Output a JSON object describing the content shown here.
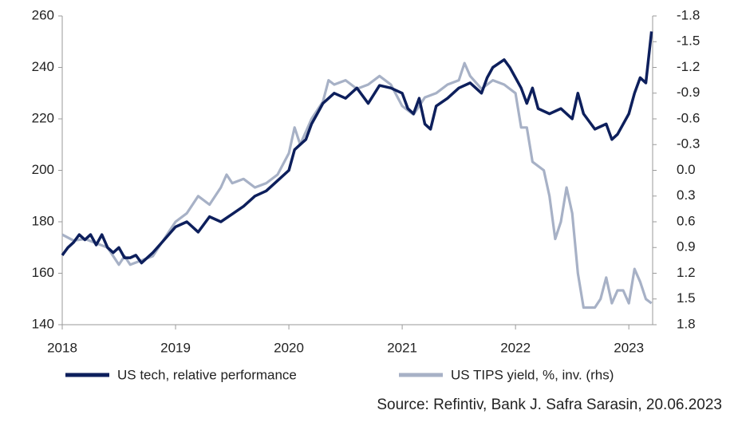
{
  "chart_data": {
    "type": "line",
    "xlim": [
      2018,
      2023.21
    ],
    "xticks": [
      2018,
      2019,
      2020,
      2021,
      2022,
      2023
    ],
    "ylim": [
      140,
      260
    ],
    "yticks": [
      140,
      160,
      180,
      200,
      220,
      240,
      260
    ],
    "y2lim": [
      1.8,
      -1.8
    ],
    "y2ticks": [
      1.8,
      1.5,
      1.2,
      0.9,
      0.6,
      0.3,
      {
        "value": 0,
        "label": "0.0"
      },
      -0.3,
      -0.6,
      -0.9,
      -1.2,
      -1.5,
      -1.8
    ],
    "series": [
      {
        "name": "US tech, relative performance",
        "color": "#0d1f5c",
        "x": [
          2018.0,
          2018.05,
          2018.1,
          2018.15,
          2018.2,
          2018.25,
          2018.3,
          2018.35,
          2018.4,
          2018.45,
          2018.5,
          2018.55,
          2018.6,
          2018.65,
          2018.7,
          2018.8,
          2018.9,
          2019.0,
          2019.1,
          2019.2,
          2019.3,
          2019.4,
          2019.5,
          2019.6,
          2019.7,
          2019.8,
          2019.9,
          2020.0,
          2020.05,
          2020.1,
          2020.15,
          2020.2,
          2020.25,
          2020.3,
          2020.4,
          2020.5,
          2020.6,
          2020.7,
          2020.8,
          2020.9,
          2021.0,
          2021.05,
          2021.1,
          2021.15,
          2021.2,
          2021.25,
          2021.3,
          2021.4,
          2021.5,
          2021.6,
          2021.7,
          2021.75,
          2021.8,
          2021.9,
          2021.95,
          2022.0,
          2022.05,
          2022.1,
          2022.15,
          2022.2,
          2022.3,
          2022.4,
          2022.5,
          2022.55,
          2022.6,
          2022.7,
          2022.8,
          2022.85,
          2022.9,
          2023.0,
          2023.05,
          2023.1,
          2023.15,
          2023.2
        ],
        "values": [
          167,
          170,
          172,
          175,
          173,
          175,
          171,
          175,
          170,
          168,
          170,
          166,
          166,
          167,
          164,
          168,
          173,
          178,
          180,
          176,
          182,
          180,
          183,
          186,
          190,
          192,
          196,
          200,
          208,
          210,
          212,
          218,
          222,
          226,
          230,
          228,
          232,
          226,
          233,
          232,
          230,
          224,
          222,
          228,
          218,
          216,
          225,
          228,
          232,
          234,
          230,
          236,
          240,
          243,
          240,
          236,
          232,
          226,
          232,
          224,
          222,
          224,
          220,
          230,
          222,
          216,
          218,
          212,
          214,
          222,
          230,
          236,
          234,
          254
        ]
      },
      {
        "name": "US TIPS yield, %, inv. (rhs)",
        "color": "#a7b1c6",
        "axis": "y2",
        "x": [
          2018.0,
          2018.1,
          2018.2,
          2018.3,
          2018.4,
          2018.5,
          2018.55,
          2018.6,
          2018.7,
          2018.8,
          2018.9,
          2019.0,
          2019.1,
          2019.2,
          2019.3,
          2019.4,
          2019.45,
          2019.5,
          2019.6,
          2019.7,
          2019.8,
          2019.9,
          2020.0,
          2020.05,
          2020.1,
          2020.2,
          2020.3,
          2020.35,
          2020.4,
          2020.5,
          2020.6,
          2020.7,
          2020.8,
          2020.9,
          2021.0,
          2021.1,
          2021.2,
          2021.3,
          2021.4,
          2021.5,
          2021.55,
          2021.6,
          2021.7,
          2021.8,
          2021.9,
          2022.0,
          2022.05,
          2022.1,
          2022.15,
          2022.25,
          2022.3,
          2022.35,
          2022.4,
          2022.45,
          2022.5,
          2022.55,
          2022.6,
          2022.7,
          2022.75,
          2022.8,
          2022.85,
          2022.9,
          2022.95,
          2023.0,
          2023.05,
          2023.1,
          2023.15,
          2023.2
        ],
        "values": [
          0.75,
          0.82,
          0.8,
          0.85,
          0.9,
          1.1,
          1.0,
          1.1,
          1.05,
          1.0,
          0.8,
          0.6,
          0.5,
          0.3,
          0.4,
          0.2,
          0.05,
          0.15,
          0.1,
          0.2,
          0.15,
          0.05,
          -0.2,
          -0.5,
          -0.3,
          -0.6,
          -0.8,
          -1.05,
          -1.0,
          -1.05,
          -0.95,
          -1.0,
          -1.1,
          -1.0,
          -0.75,
          -0.65,
          -0.85,
          -0.9,
          -1.0,
          -1.05,
          -1.25,
          -1.1,
          -0.95,
          -1.05,
          -1.0,
          -0.9,
          -0.5,
          -0.5,
          -0.1,
          0.0,
          0.3,
          0.8,
          0.6,
          0.2,
          0.5,
          1.2,
          1.6,
          1.6,
          1.5,
          1.25,
          1.55,
          1.4,
          1.4,
          1.55,
          1.15,
          1.3,
          1.5,
          1.55
        ]
      }
    ],
    "source": "Source: Refintiv, Bank J. Safra Sarasin, 20.06.2023"
  }
}
